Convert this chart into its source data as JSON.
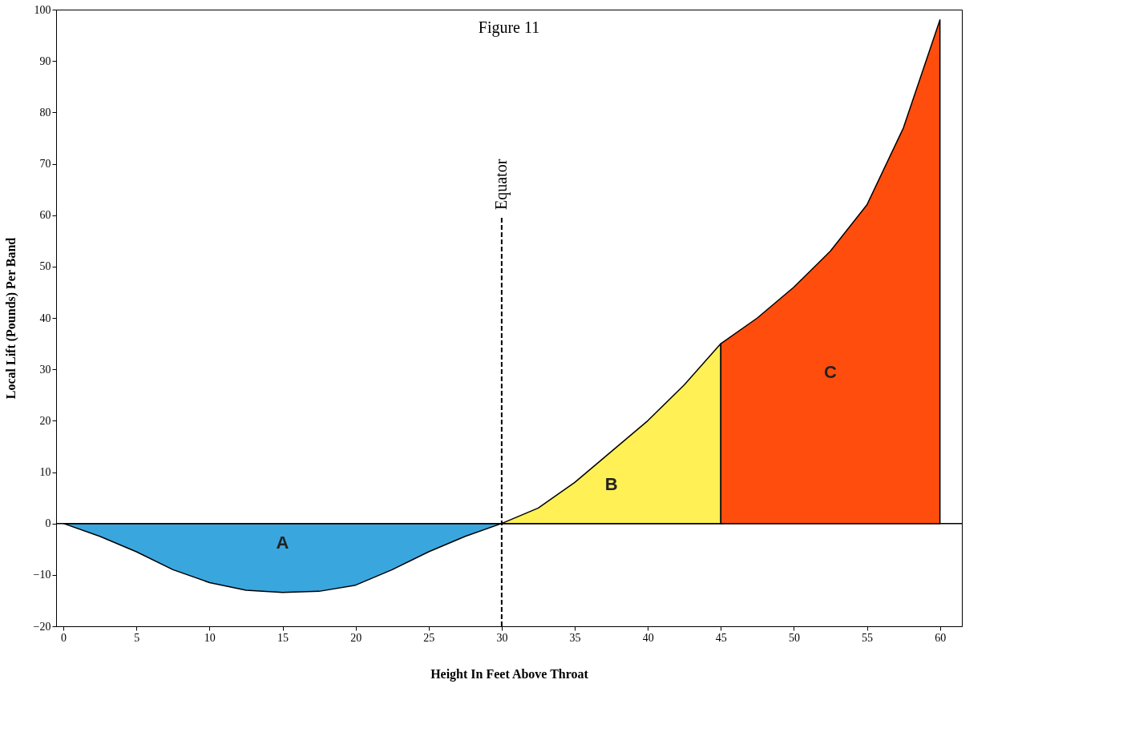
{
  "chart_data": {
    "type": "area",
    "title": "Figure 11",
    "xlabel": "Height In Feet Above Throat",
    "ylabel": "Local Lift (Pounds) Per Band",
    "xlim": [
      -0.5,
      61.5
    ],
    "xticks": [
      0,
      5,
      10,
      15,
      20,
      25,
      30,
      35,
      40,
      45,
      50,
      55,
      60
    ],
    "ylim": [
      -20,
      100
    ],
    "yticks": [
      -20,
      -10,
      0,
      10,
      20,
      30,
      40,
      50,
      60,
      70,
      80,
      90,
      100
    ],
    "grid": false,
    "series": [
      {
        "name": "A",
        "color": "#3aa6de",
        "x": [
          0,
          2.5,
          5,
          7.5,
          10,
          12.5,
          15,
          17.5,
          20,
          22.5,
          25,
          27.5,
          30
        ],
        "values": [
          0,
          -2.5,
          -5.5,
          -9,
          -11.5,
          -13,
          -13.4,
          -13.2,
          -12,
          -9,
          -5.5,
          -2.5,
          0
        ]
      },
      {
        "name": "B",
        "color": "#fff055",
        "x": [
          30,
          32.5,
          35,
          37.5,
          40,
          42.5,
          45
        ],
        "values": [
          0,
          3,
          8,
          14,
          20,
          27,
          35
        ]
      },
      {
        "name": "C",
        "color": "#ff4d0e",
        "x": [
          45,
          47.5,
          50,
          52.5,
          55,
          57.5,
          60
        ],
        "values": [
          35,
          40,
          46,
          53,
          62,
          77,
          98
        ]
      }
    ],
    "ref_lines": [
      {
        "axis": "x",
        "value": 30,
        "label": "Equator",
        "line_style": "dashed"
      },
      {
        "axis": "y",
        "value": 0,
        "line_style": "solid"
      }
    ]
  }
}
